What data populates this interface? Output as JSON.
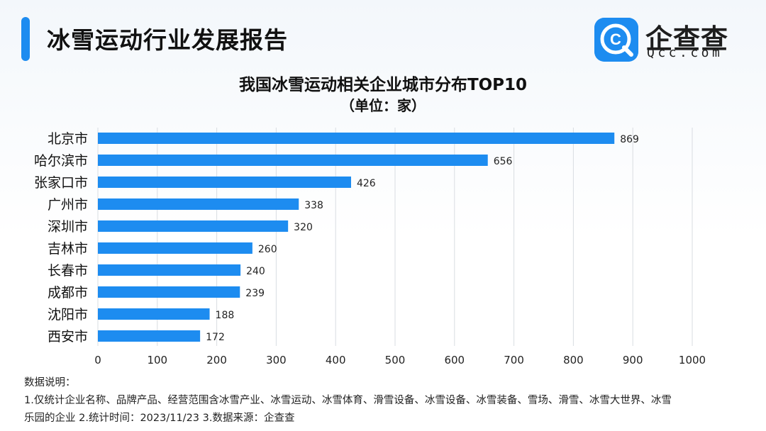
{
  "header": {
    "title": "冰雪运动行业发展报告",
    "brand_name": "企查查",
    "brand_domain": "Qcc.com",
    "logo_letter": "C",
    "accent_color": "#1d8cf0"
  },
  "chart_data": {
    "type": "bar",
    "orientation": "horizontal",
    "title": "我国冰雪运动相关企业城市分布TOP10",
    "subtitle": "（单位：家）",
    "categories": [
      "北京市",
      "哈尔滨市",
      "张家口市",
      "广州市",
      "深圳市",
      "吉林市",
      "长春市",
      "成都市",
      "沈阳市",
      "西安市"
    ],
    "values": [
      869,
      656,
      426,
      338,
      320,
      260,
      240,
      239,
      188,
      172
    ],
    "xlim": [
      0,
      1000
    ],
    "xticks": [
      0,
      100,
      200,
      300,
      400,
      500,
      600,
      700,
      800,
      900,
      1000
    ],
    "grid": true,
    "bar_color": "#1d8cf0",
    "xlabel": "",
    "ylabel": ""
  },
  "notes": {
    "heading": "数据说明：",
    "line1": "1.仅统计企业名称、品牌产品、经营范围含冰雪产业、冰雪运动、冰雪体育、滑雪设备、冰雪设备、冰雪装备、雪场、滑雪、冰雪大世界、冰雪",
    "line2": "乐园的企业   2.统计时间：2023/11/23    3.数据来源：企查查"
  }
}
